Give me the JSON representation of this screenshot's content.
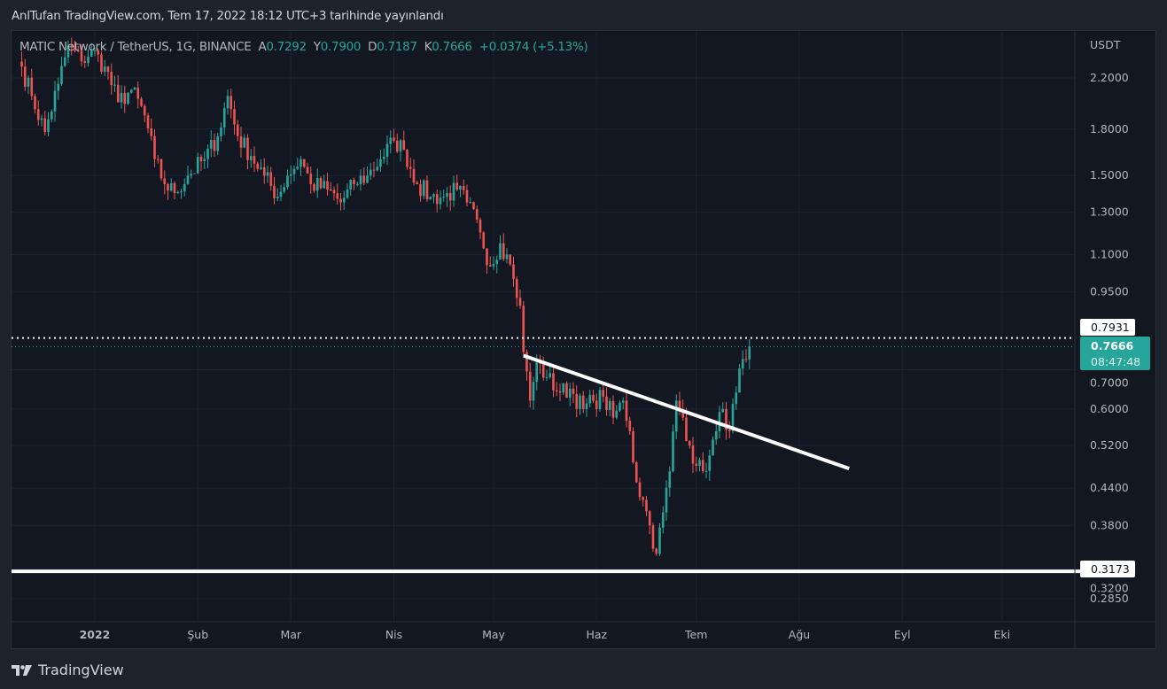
{
  "header": {
    "published": "AnlTufan TradingView.com, Tem 17, 2022 18:12 UTC+3 tarihinde yayınlandı"
  },
  "legend": {
    "symbol": "MATIC Network / TetherUS, 1G, BINANCE",
    "open_label": "A",
    "open": "0.7292",
    "high_label": "Y",
    "high": "0.7900",
    "low_label": "D",
    "low": "0.7187",
    "close_label": "K",
    "close": "0.7666",
    "change": "+0.0374 (+5.13%)"
  },
  "price_axis": {
    "currency": "USDT",
    "ticks": [
      "2.2000",
      "1.8000",
      "1.5000",
      "1.3000",
      "1.1000",
      "0.9500",
      "0.7000",
      "0.6000",
      "0.5200",
      "0.4400",
      "0.3800",
      "0.3200",
      "0.2850"
    ],
    "tick_values": [
      2.2,
      1.8,
      1.5,
      1.3,
      1.1,
      0.95,
      0.7,
      0.6,
      0.52,
      0.44,
      0.38,
      0.32,
      0.285
    ],
    "high_marker": "0.7931",
    "high_marker_value": 0.7931,
    "last_price": "0.7666",
    "last_price_value": 0.7666,
    "countdown": "08:47:48",
    "support_marker": "0.3173",
    "support_value": 0.3173
  },
  "time_axis": {
    "labels": [
      "2022",
      "Şub",
      "Mar",
      "Nis",
      "May",
      "Haz",
      "Tem",
      "Ağu",
      "Eyl",
      "Eki"
    ],
    "label_days": [
      0,
      31,
      59,
      90,
      120,
      151,
      181,
      212,
      243,
      273
    ]
  },
  "chart_data": {
    "type": "candlestick",
    "scale": "log",
    "x_unit": "days since 2022-01-01",
    "waypoints_close": [
      [
        -22,
        2.3
      ],
      [
        -19,
        2.05
      ],
      [
        -15,
        1.78
      ],
      [
        -11,
        2.15
      ],
      [
        -8,
        2.5
      ],
      [
        -4,
        2.35
      ],
      [
        -1,
        2.45
      ],
      [
        3,
        2.3
      ],
      [
        7,
        2.0
      ],
      [
        11,
        2.1
      ],
      [
        15,
        1.9
      ],
      [
        18,
        1.6
      ],
      [
        21,
        1.45
      ],
      [
        24,
        1.4
      ],
      [
        28,
        1.5
      ],
      [
        33,
        1.6
      ],
      [
        37,
        1.75
      ],
      [
        40,
        2.05
      ],
      [
        43,
        1.75
      ],
      [
        47,
        1.62
      ],
      [
        51,
        1.5
      ],
      [
        55,
        1.38
      ],
      [
        58,
        1.5
      ],
      [
        62,
        1.6
      ],
      [
        65,
        1.45
      ],
      [
        70,
        1.42
      ],
      [
        74,
        1.35
      ],
      [
        78,
        1.45
      ],
      [
        82,
        1.5
      ],
      [
        86,
        1.6
      ],
      [
        90,
        1.72
      ],
      [
        93,
        1.66
      ],
      [
        97,
        1.45
      ],
      [
        101,
        1.38
      ],
      [
        105,
        1.38
      ],
      [
        109,
        1.42
      ],
      [
        112,
        1.35
      ],
      [
        116,
        1.2
      ],
      [
        119,
        1.05
      ],
      [
        122,
        1.15
      ],
      [
        124,
        1.1
      ],
      [
        126,
        1.0
      ],
      [
        128,
        0.9
      ],
      [
        129,
        0.75
      ],
      [
        131,
        0.62
      ],
      [
        133,
        0.72
      ],
      [
        136,
        0.68
      ],
      [
        140,
        0.64
      ],
      [
        143,
        0.65
      ],
      [
        147,
        0.6
      ],
      [
        150,
        0.62
      ],
      [
        153,
        0.63
      ],
      [
        156,
        0.58
      ],
      [
        159,
        0.62
      ],
      [
        161,
        0.55
      ],
      [
        163,
        0.45
      ],
      [
        165,
        0.42
      ],
      [
        167,
        0.38
      ],
      [
        169,
        0.34
      ],
      [
        171,
        0.4
      ],
      [
        173,
        0.47
      ],
      [
        175,
        0.62
      ],
      [
        177,
        0.58
      ],
      [
        179,
        0.52
      ],
      [
        181,
        0.48
      ],
      [
        183,
        0.47
      ],
      [
        185,
        0.5
      ],
      [
        187,
        0.55
      ],
      [
        189,
        0.6
      ],
      [
        191,
        0.55
      ],
      [
        193,
        0.64
      ],
      [
        195,
        0.73
      ],
      [
        196,
        0.7292
      ],
      [
        197,
        0.7666
      ]
    ],
    "trendline": {
      "from": [
        129,
        0.74
      ],
      "to": [
        227,
        0.475
      ]
    },
    "support_line": 0.3173,
    "last_close": 0.7666
  },
  "footer": {
    "brand": "TradingView"
  }
}
